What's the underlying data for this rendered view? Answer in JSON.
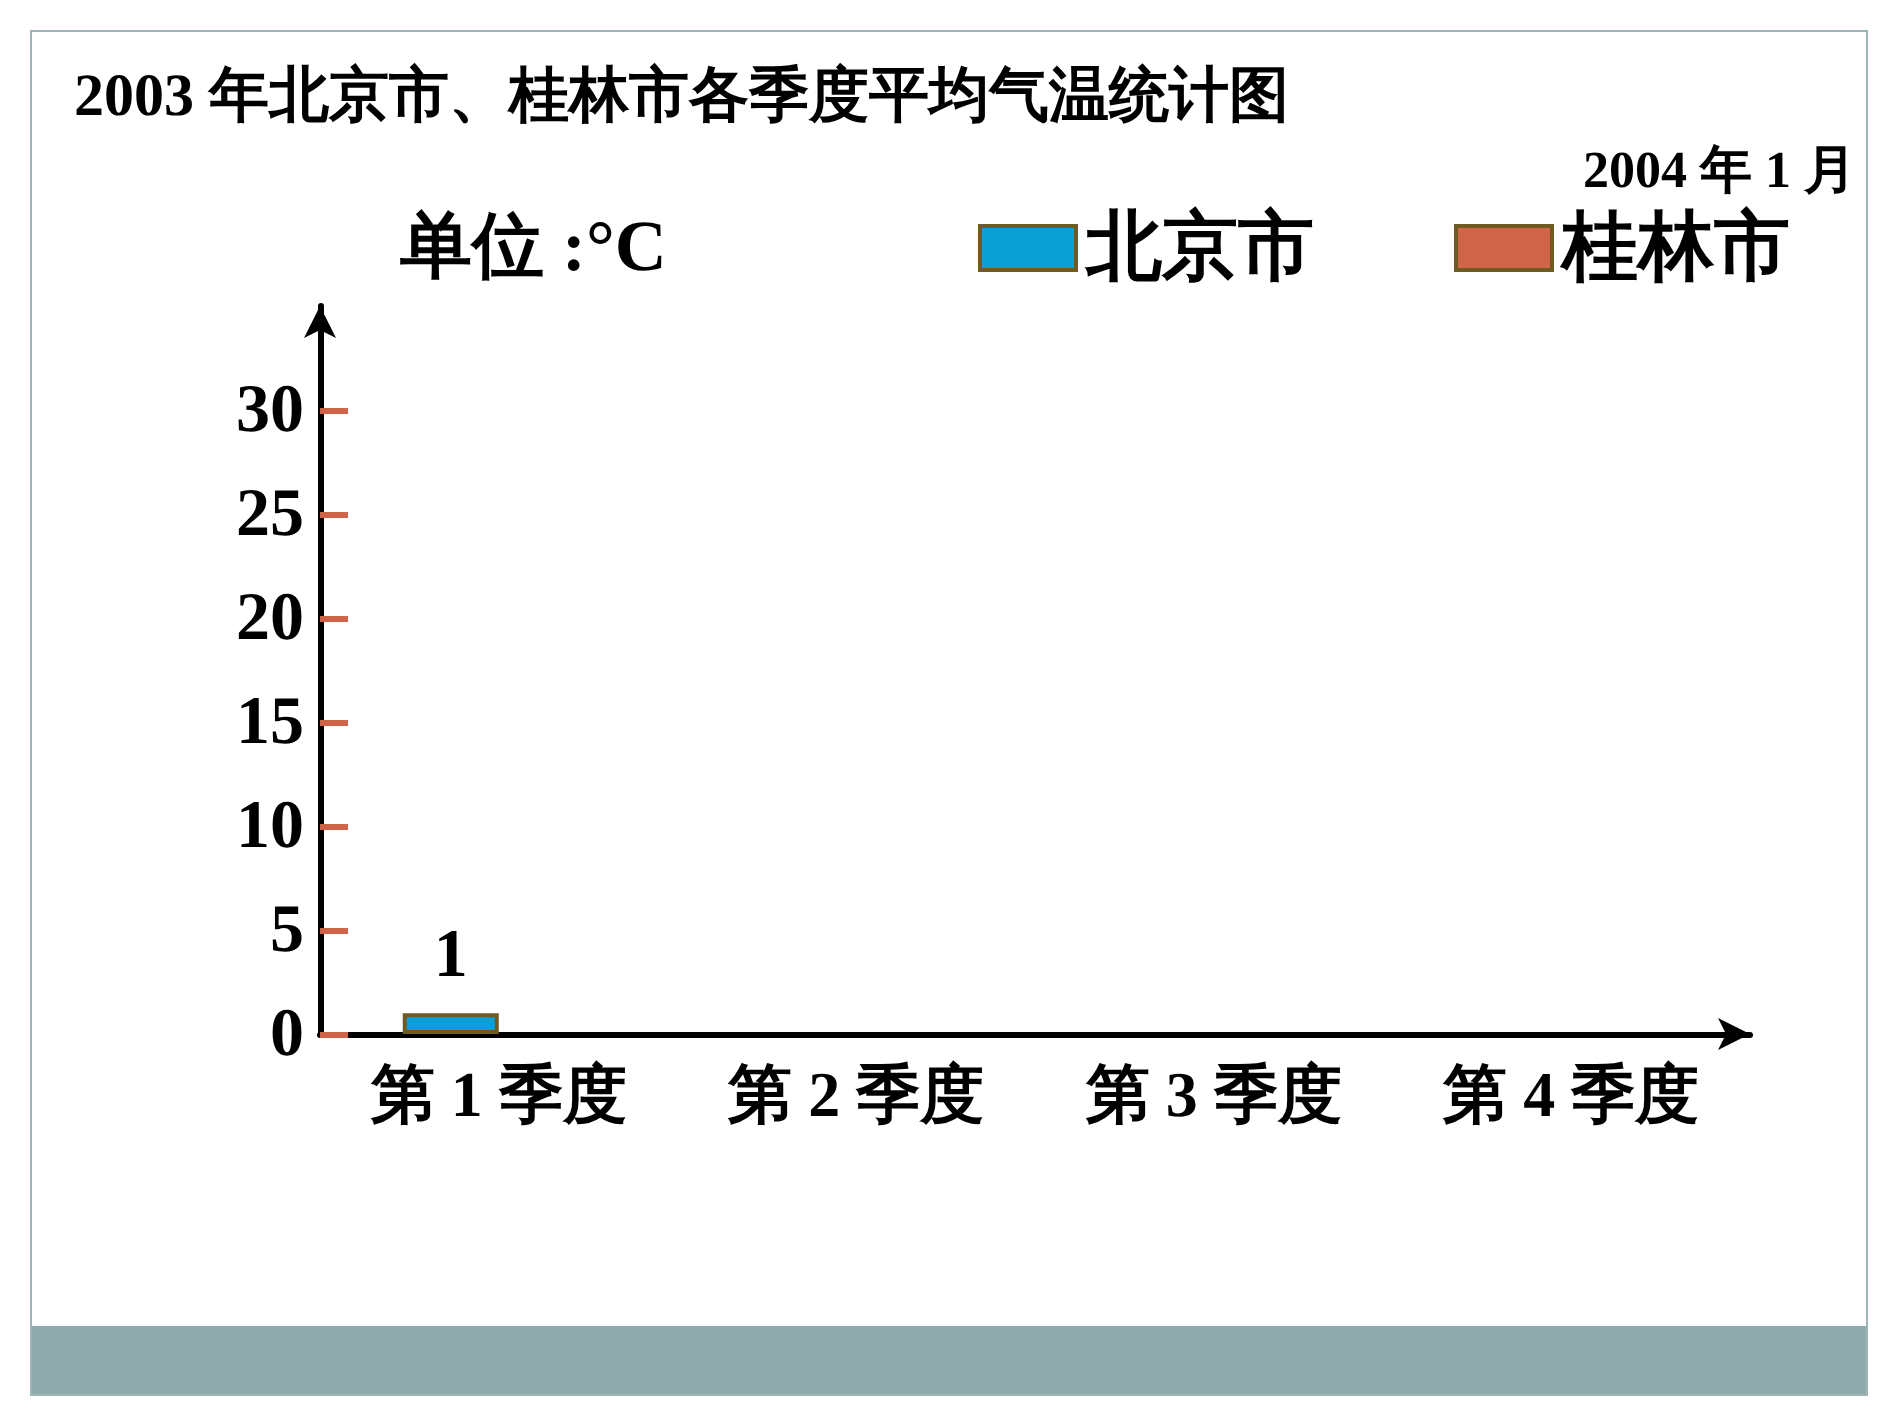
{
  "chart_data": {
    "type": "bar",
    "title": "2003 年北京市、桂林市各季度平均气温统计图",
    "ylabel": "单位 :°C",
    "annotations": [
      "2004 年 1 月"
    ],
    "categories": [
      "第 1 季度",
      "第 2 季度",
      "第 3 季度",
      "第 4 季度"
    ],
    "series": [
      {
        "name": "北京市",
        "color": "#0aa0d6",
        "values": [
          1,
          null,
          null,
          null
        ]
      },
      {
        "name": "桂林市",
        "color": "#d0644a",
        "values": [
          null,
          null,
          null,
          null
        ]
      }
    ],
    "ylim": [
      0,
      35
    ],
    "yticks": [
      0,
      5,
      10,
      15,
      20,
      25,
      30
    ],
    "data_labels": true,
    "legend": "top"
  }
}
